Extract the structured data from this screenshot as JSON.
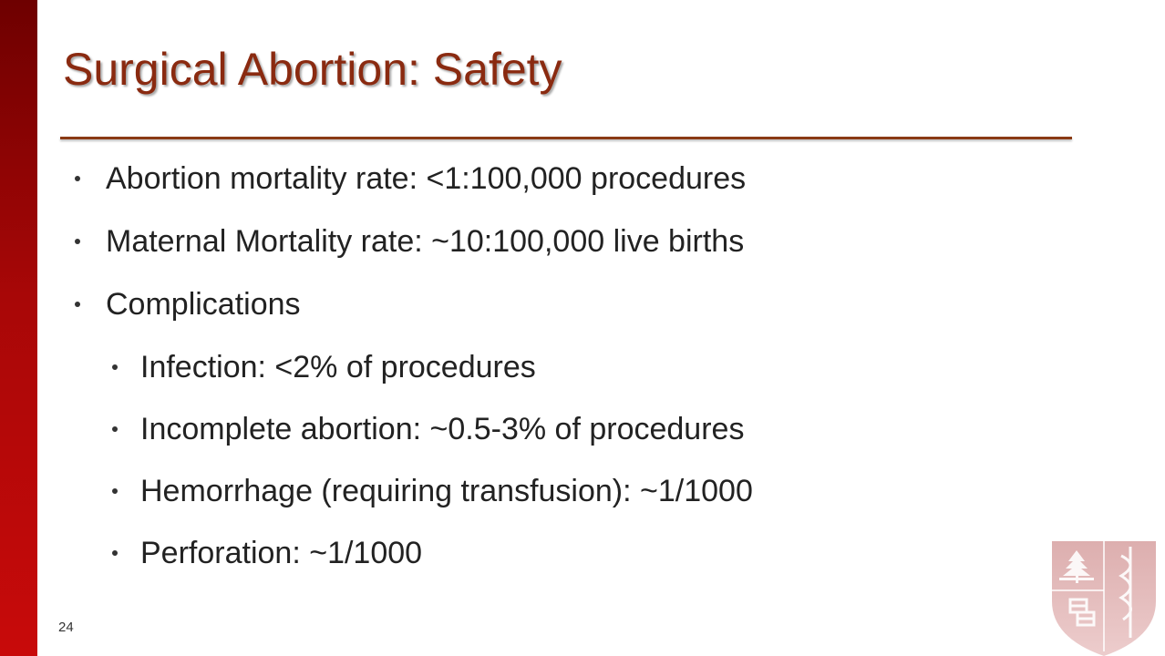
{
  "slide": {
    "title": "Surgical Abortion: Safety",
    "page_number": "24",
    "bullets": [
      {
        "level": 1,
        "text": "Abortion mortality rate: <1:100,000 procedures"
      },
      {
        "level": 1,
        "text": "Maternal Mortality rate: ~10:100,000 live births"
      },
      {
        "level": 1,
        "text": "Complications"
      },
      {
        "level": 2,
        "text": "Infection: <2% of procedures"
      },
      {
        "level": 2,
        "text": "Incomplete abortion: ~0.5-3% of procedures"
      },
      {
        "level": 2,
        "text": "Hemorrhage (requiring transfusion): ~1/1000"
      },
      {
        "level": 2,
        "text": "Perforation: ~1/1000"
      }
    ]
  },
  "colors": {
    "accent": "#8a2a10",
    "left_bar": "#b00808",
    "logo": "#c87878"
  },
  "icons": {
    "logo": "shield-logo-icon"
  }
}
